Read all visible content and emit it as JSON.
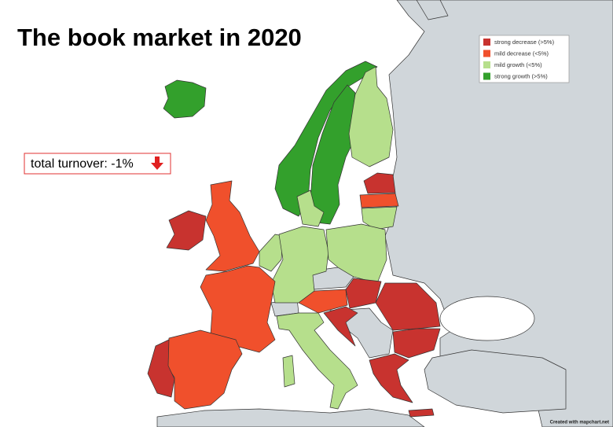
{
  "header": {
    "title": "The book market in 2020"
  },
  "legend": {
    "items": [
      {
        "label": "strong decrease (>5%)",
        "color": "#c8332f"
      },
      {
        "label": "mild decrease (<5%)",
        "color": "#f0502c"
      },
      {
        "label": "mild growth (<5%)",
        "color": "#b6df8c"
      },
      {
        "label": "strong growth (>5%)",
        "color": "#33a02c"
      }
    ]
  },
  "annotation": {
    "text": "total turnover: -1%"
  },
  "footer": {
    "credit": "Created with mapchart.net"
  }
}
